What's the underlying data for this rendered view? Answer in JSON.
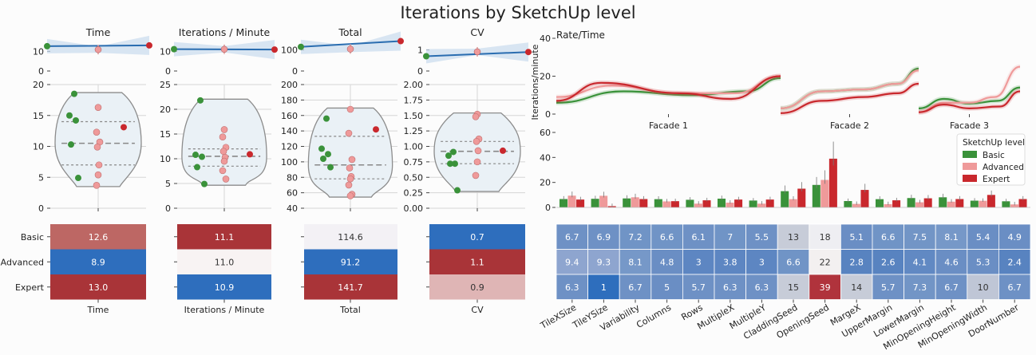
{
  "title": "Iterations by SketchUp level",
  "legend": {
    "title": "SketchUp level",
    "entries": [
      {
        "name": "Basic",
        "color": "#3a923a"
      },
      {
        "name": "Advanced",
        "color": "#ef9a9a"
      },
      {
        "name": "Expert",
        "color": "#c9282d"
      }
    ]
  },
  "chart_data": [
    {
      "type": "violin",
      "title": "Time",
      "xlabel": "Time",
      "mini_ylim": [
        0,
        15
      ],
      "mini_yticks": [
        0,
        10
      ],
      "ylim": [
        0,
        20
      ],
      "yticks": [
        "0",
        "5",
        "10",
        "15",
        "20"
      ],
      "dashed_quartiles": [
        7,
        10.5,
        14
      ],
      "points": {
        "Basic": [
          18.5,
          15,
          14.2,
          10.3,
          4.9
        ],
        "Advanced": [
          16.3,
          12.3,
          10.7,
          9.9,
          7.0,
          5.4,
          3.7
        ],
        "Expert": [
          13.1
        ]
      },
      "heat": [
        {
          "level": "Basic",
          "value": "12.6",
          "color": "#bd6764",
          "text": "#ffffff"
        },
        {
          "level": "Advanced",
          "value": "8.9",
          "color": "#2e6ebd",
          "text": "#ffffff"
        },
        {
          "level": "Expert",
          "value": "13.0",
          "color": "#a93438",
          "text": "#ffffff"
        }
      ]
    },
    {
      "type": "violin",
      "title": "Iterations / Minute",
      "xlabel": "Iterations / Minute",
      "mini_ylim": [
        0,
        15
      ],
      "mini_yticks": [
        0,
        10
      ],
      "ylim": [
        0,
        25
      ],
      "yticks": [
        "0",
        "5",
        "10",
        "15",
        "20",
        "25"
      ],
      "dashed_quartiles": [
        8.5,
        10.5,
        12
      ],
      "points": {
        "Basic": [
          21.8,
          10.8,
          10.4,
          8.3,
          4.9
        ],
        "Advanced": [
          15.9,
          14.4,
          12.3,
          11.5,
          10.3,
          9.5,
          7.6,
          5.9
        ],
        "Expert": [
          10.9
        ]
      },
      "heat": [
        {
          "level": "Basic",
          "value": "11.1",
          "color": "#a93438",
          "text": "#ffffff"
        },
        {
          "level": "Advanced",
          "value": "11.0",
          "color": "#f8f3f3",
          "text": "#333333"
        },
        {
          "level": "Expert",
          "value": "10.9",
          "color": "#2e6ebd",
          "text": "#ffffff"
        }
      ]
    },
    {
      "type": "violin",
      "title": "Total",
      "xlabel": "Total",
      "mini_ylim": [
        0,
        140
      ],
      "mini_yticks": [
        0,
        100
      ],
      "ylim": [
        40,
        200
      ],
      "yticks": [
        "40",
        "60",
        "80",
        "100",
        "120",
        "140",
        "160",
        "180",
        "200"
      ],
      "dashed_quartiles": [
        78,
        96,
        133
      ],
      "points": {
        "Basic": [
          156,
          117,
          110,
          104,
          93
        ],
        "Advanced": [
          168,
          137,
          103,
          92,
          81,
          78,
          70,
          58,
          56
        ],
        "Expert": [
          142
        ]
      },
      "heat": [
        {
          "level": "Basic",
          "value": "114.6",
          "color": "#f3f1f5",
          "text": "#333333"
        },
        {
          "level": "Advanced",
          "value": "91.2",
          "color": "#2e6ebd",
          "text": "#ffffff"
        },
        {
          "level": "Expert",
          "value": "141.7",
          "color": "#a93438",
          "text": "#ffffff"
        }
      ]
    },
    {
      "type": "violin",
      "title": "CV",
      "xlabel": "CV",
      "mini_ylim": [
        0,
        1.4
      ],
      "mini_yticks": [
        0,
        1
      ],
      "ylim": [
        0,
        2
      ],
      "yticks": [
        "0.00",
        "0.25",
        "0.50",
        "0.75",
        "1.00",
        "1.25",
        "1.50",
        "1.75",
        "2.00"
      ],
      "dashed_quartiles": [
        0.72,
        0.92,
        1.08
      ],
      "points": {
        "Basic": [
          0.91,
          0.85,
          0.72,
          0.72,
          0.29
        ],
        "Advanced": [
          1.52,
          1.48,
          1.12,
          1.08,
          0.93,
          0.75,
          0.53
        ],
        "Expert": [
          0.93
        ]
      },
      "heat": [
        {
          "level": "Basic",
          "value": "0.7",
          "color": "#2e6ebd",
          "text": "#ffffff"
        },
        {
          "level": "Advanced",
          "value": "1.1",
          "color": "#a93438",
          "text": "#ffffff"
        },
        {
          "level": "Expert",
          "value": "0.9",
          "color": "#dfb5b5",
          "text": "#333333"
        }
      ]
    },
    {
      "type": "line",
      "title": "Rate/Time",
      "ylabel": "Iterations/minute",
      "ylim": [
        0,
        40
      ],
      "yticks": [
        "0",
        "20",
        "40"
      ],
      "panels": [
        "Facade 1",
        "Facade 2",
        "Facade 3"
      ]
    },
    {
      "type": "bar",
      "ylim": [
        0,
        60
      ],
      "yticks": [
        "0",
        "20",
        "40",
        "60"
      ],
      "categories": [
        "TileXSize",
        "TileYSize",
        "Variability",
        "Columns",
        "Rows",
        "MultipleX",
        "MultipleY",
        "CladdingSeed",
        "OpeningSeed",
        "MargeX",
        "UpperMargin",
        "LowerMargin",
        "MinOpeningHeight",
        "MinOpeningWidth",
        "DoorNumber"
      ],
      "series": [
        {
          "name": "Basic",
          "values": [
            6.7,
            6.9,
            7.2,
            6.6,
            6.1,
            7.0,
            5.5,
            13,
            18,
            5.1,
            6.6,
            7.5,
            8.1,
            5.4,
            4.9
          ]
        },
        {
          "name": "Advanced",
          "values": [
            9.4,
            9.3,
            8.1,
            4.8,
            3,
            3.8,
            3,
            6.6,
            22,
            2.8,
            2.6,
            4.1,
            4.6,
            5.3,
            2.4
          ]
        },
        {
          "name": "Expert",
          "values": [
            6.3,
            1,
            6.7,
            5,
            5.7,
            6.3,
            6.3,
            15,
            39,
            14,
            5.7,
            7.3,
            6.7,
            10,
            6.7
          ]
        }
      ]
    },
    {
      "type": "heatmap",
      "rows": [
        "Basic",
        "Advanced",
        "Expert"
      ],
      "columns": [
        "TileXSize",
        "TileYSize",
        "Variability",
        "Columns",
        "Rows",
        "MultipleX",
        "MultipleY",
        "CladdingSeed",
        "OpeningSeed",
        "MargeX",
        "UpperMargin",
        "LowerMargin",
        "MinOpeningHeight",
        "MinOpeningWidth",
        "DoorNumber"
      ],
      "values": [
        [
          "6.7",
          "6.9",
          "7.2",
          "6.6",
          "6.1",
          "7",
          "5.5",
          "13",
          "18",
          "5.1",
          "6.6",
          "7.5",
          "8.1",
          "5.4",
          "4.9"
        ],
        [
          "9.4",
          "9.3",
          "8.1",
          "4.8",
          "3",
          "3.8",
          "3",
          "6.6",
          "22",
          "2.8",
          "2.6",
          "4.1",
          "4.6",
          "5.3",
          "2.4"
        ],
        [
          "6.3",
          "1",
          "6.7",
          "5",
          "5.7",
          "6.3",
          "6.3",
          "15",
          "39",
          "14",
          "5.7",
          "7.3",
          "6.7",
          "10",
          "6.7"
        ]
      ]
    }
  ]
}
